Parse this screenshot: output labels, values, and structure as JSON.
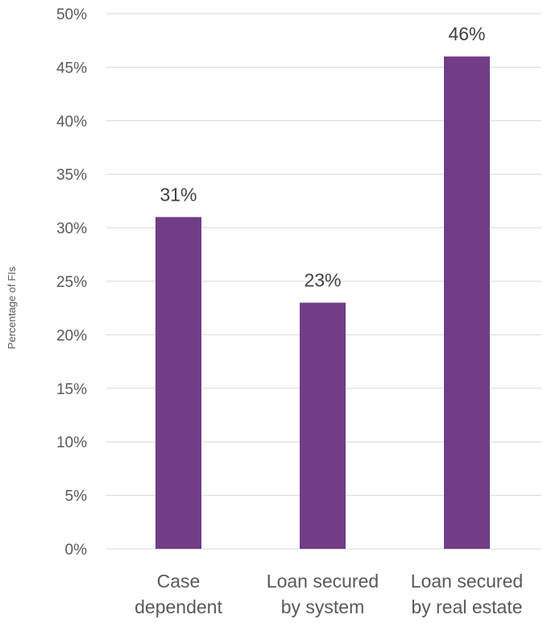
{
  "chart_data": {
    "type": "bar",
    "categories": [
      [
        "Case",
        "dependent"
      ],
      [
        "Loan secured",
        "by system"
      ],
      [
        "Loan secured",
        "by real estate"
      ]
    ],
    "values": [
      31,
      23,
      46
    ],
    "data_labels": [
      "31%",
      "23%",
      "46%"
    ],
    "ylabel": "Percentage of FIs",
    "ylim": [
      0,
      50
    ],
    "yticks": [
      0,
      5,
      10,
      15,
      20,
      25,
      30,
      35,
      40,
      45,
      50
    ],
    "ytick_labels": [
      "0%",
      "5%",
      "10%",
      "15%",
      "20%",
      "25%",
      "30%",
      "35%",
      "40%",
      "45%",
      "50%"
    ],
    "grid": true,
    "legend": "none",
    "bar_color": "#713d87"
  }
}
